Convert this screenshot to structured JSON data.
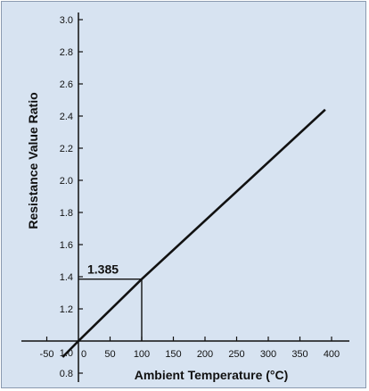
{
  "chart_data": {
    "type": "line",
    "xlabel": "Ambient Temperature (°C)",
    "ylabel": "Resistance Value Ratio",
    "xlim": [
      -50,
      400
    ],
    "ylim": [
      0.8,
      3.0
    ],
    "x_ticks": [
      "-50",
      "0",
      "50",
      "100",
      "150",
      "200",
      "250",
      "300",
      "350",
      "400"
    ],
    "x_tick_values": [
      -50,
      0,
      50,
      100,
      150,
      200,
      250,
      300,
      350,
      400
    ],
    "y_ticks": [
      "0.8",
      "1.0",
      "1.2",
      "1.4",
      "1.6",
      "1.8",
      "2.0",
      "2.2",
      "2.4",
      "2.6",
      "2.8",
      "3.0"
    ],
    "y_tick_values": [
      0.8,
      1.0,
      1.2,
      1.4,
      1.6,
      1.8,
      2.0,
      2.2,
      2.4,
      2.6,
      2.8,
      3.0
    ],
    "grid": false,
    "series": [
      {
        "x": [
          -25,
          0,
          100,
          390
        ],
        "y": [
          0.9,
          1.0,
          1.385,
          2.44
        ]
      }
    ],
    "annotation": {
      "label": "1.385",
      "x": 100,
      "y": 1.385
    },
    "colors": {
      "background": "#d7e3f1",
      "line": "#111111"
    }
  }
}
